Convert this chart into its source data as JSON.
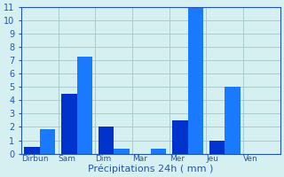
{
  "days": [
    "Dirbun",
    "Sam",
    "Dim",
    "Mar",
    "Mer",
    "Jeu",
    "Ven"
  ],
  "values_left": [
    0.5,
    4.5,
    2.0,
    0.0,
    2.5,
    1.0,
    0.0
  ],
  "values_right": [
    1.8,
    7.3,
    0.4,
    0.4,
    11.0,
    5.0,
    0.0
  ],
  "bar_color_left": "#0033cc",
  "bar_color_right": "#1a7aff",
  "background_color": "#d6eff0",
  "grid_color": "#aacccc",
  "text_color": "#2255aa",
  "xlabel": "Précipitations 24h ( mm )",
  "ylim": [
    0,
    11
  ],
  "yticks": [
    0,
    1,
    2,
    3,
    4,
    5,
    6,
    7,
    8,
    9,
    10,
    11
  ]
}
